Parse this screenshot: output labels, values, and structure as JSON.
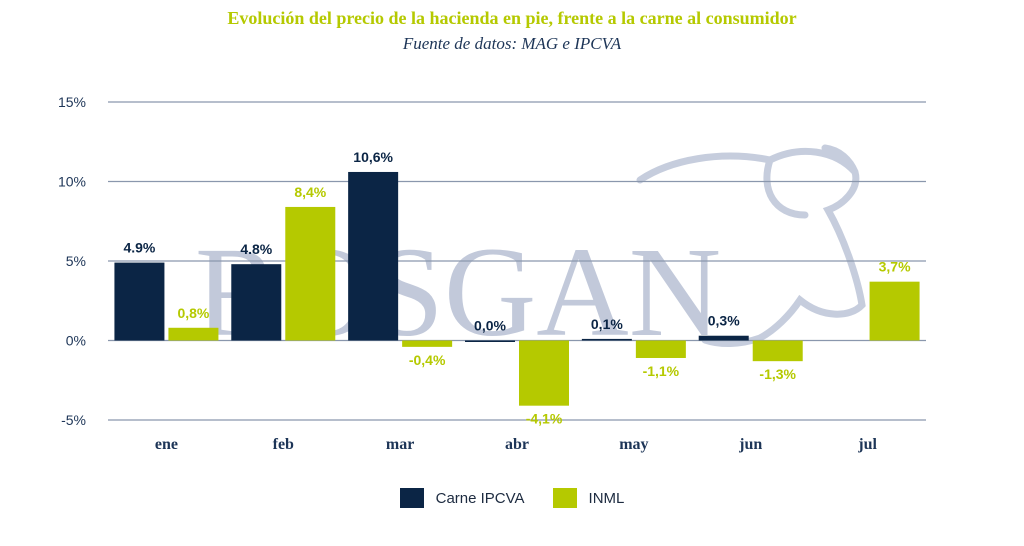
{
  "colors": {
    "series_a": "#0b2545",
    "series_b": "#b5c900",
    "title": "#b5c900",
    "subtitle": "#1d3557",
    "axis_text": "#1d3557",
    "grid": "#8a97ad",
    "watermark": "#b8c0d4"
  },
  "header": {
    "title": "Evolución del precio de la hacienda en pie, frente a la carne al consumidor",
    "subtitle": "Fuente de datos: MAG e IPCVA"
  },
  "watermark": {
    "text": "ROSGAN"
  },
  "chart_data": {
    "type": "bar",
    "categories": [
      "ene",
      "feb",
      "mar",
      "abr",
      "may",
      "jun",
      "jul"
    ],
    "ylim": [
      -5,
      15
    ],
    "yticks": [
      -5,
      0,
      5,
      10,
      15
    ],
    "ytick_labels": [
      "-5%",
      "0%",
      "5%",
      "10%",
      "15%"
    ],
    "grid": true,
    "legend_position": "bottom",
    "series": [
      {
        "name": "Carne IPCVA",
        "values": [
          4.9,
          4.8,
          10.6,
          0.0,
          0.1,
          0.3,
          null
        ],
        "labels": [
          "4.9%",
          "4.8%",
          "10,6%",
          "0,0%",
          "0,1%",
          "0,3%",
          ""
        ]
      },
      {
        "name": "INML",
        "values": [
          0.8,
          8.4,
          -0.4,
          -4.1,
          -1.1,
          -1.3,
          3.7
        ],
        "labels": [
          "0,8%",
          "8,4%",
          "-0,4%",
          "-4,1%",
          "-1,1%",
          "-1,3%",
          "3,7%"
        ]
      }
    ]
  }
}
